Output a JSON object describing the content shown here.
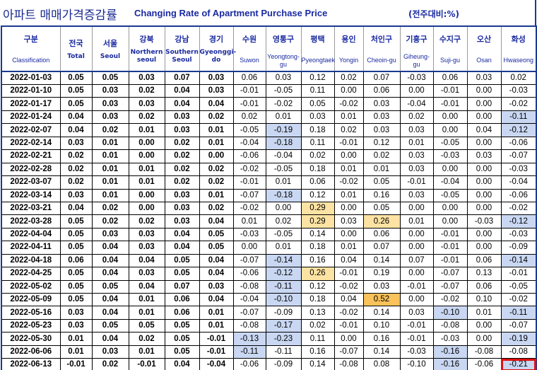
{
  "title": {
    "korean": "아파트 매매가격증감률",
    "english": "Changing Rate of Apartment Purchase Price",
    "note": "(전주대비:%)"
  },
  "columns": [
    {
      "ko": "구분",
      "en": "Classification"
    },
    {
      "ko": "전국",
      "en": "Total"
    },
    {
      "ko": "서울",
      "en": "Seoul"
    },
    {
      "ko": "강북",
      "en": "Northern seoul"
    },
    {
      "ko": "강남",
      "en": "Southern Seoul"
    },
    {
      "ko": "경기",
      "en": "Gyeonggi-do"
    },
    {
      "ko": "수원",
      "en": "Suwon"
    },
    {
      "ko": "영통구",
      "en": "Yeongtong-gu"
    },
    {
      "ko": "평택",
      "en": "Pyeongtaek"
    },
    {
      "ko": "용인",
      "en": "Yongin"
    },
    {
      "ko": "처인구",
      "en": "Cheoin-gu"
    },
    {
      "ko": "기흥구",
      "en": "Giheung-gu"
    },
    {
      "ko": "수지구",
      "en": "Suji-gu"
    },
    {
      "ko": "오산",
      "en": "Osan"
    },
    {
      "ko": "화성",
      "en": "Hwaseong"
    }
  ],
  "rows": [
    {
      "date": "2022-01-03",
      "values": [
        "0.05",
        "0.05",
        "0.03",
        "0.07",
        "0.03",
        "0.06",
        "0.03",
        "0.12",
        "0.02",
        "0.07",
        "-0.03",
        "0.06",
        "0.03",
        "0.02"
      ]
    },
    {
      "date": "2022-01-10",
      "values": [
        "0.05",
        "0.03",
        "0.02",
        "0.04",
        "0.03",
        "-0.01",
        "-0.05",
        "0.11",
        "0.00",
        "0.06",
        "0.00",
        "-0.01",
        "0.00",
        "-0.03"
      ]
    },
    {
      "date": "2022-01-17",
      "values": [
        "0.05",
        "0.03",
        "0.03",
        "0.04",
        "0.04",
        "-0.01",
        "-0.02",
        "0.05",
        "-0.02",
        "0.03",
        "-0.04",
        "-0.01",
        "0.00",
        "-0.02"
      ]
    },
    {
      "date": "2022-01-24",
      "values": [
        "0.04",
        "0.03",
        "0.02",
        "0.03",
        "0.02",
        "0.02",
        "0.01",
        "0.03",
        "0.01",
        "0.03",
        "0.02",
        "0.00",
        "0.00",
        "-0.11"
      ]
    },
    {
      "date": "2022-02-07",
      "values": [
        "0.04",
        "0.02",
        "0.01",
        "0.03",
        "0.01",
        "-0.05",
        "-0.19",
        "0.18",
        "0.02",
        "0.03",
        "0.03",
        "0.00",
        "0.04",
        "-0.12"
      ]
    },
    {
      "date": "2022-02-14",
      "values": [
        "0.03",
        "0.01",
        "0.00",
        "0.02",
        "0.01",
        "-0.04",
        "-0.18",
        "0.11",
        "-0.01",
        "0.12",
        "0.01",
        "-0.05",
        "0.00",
        "-0.06"
      ]
    },
    {
      "date": "2022-02-21",
      "values": [
        "0.02",
        "0.01",
        "0.00",
        "0.02",
        "0.00",
        "-0.06",
        "-0.04",
        "0.02",
        "0.00",
        "0.02",
        "0.03",
        "-0.03",
        "0.03",
        "-0.07"
      ]
    },
    {
      "date": "2022-02-28",
      "values": [
        "0.02",
        "0.01",
        "0.01",
        "0.02",
        "0.02",
        "-0.02",
        "-0.05",
        "0.18",
        "0.01",
        "0.01",
        "0.03",
        "0.00",
        "0.00",
        "-0.03"
      ]
    },
    {
      "date": "2022-03-07",
      "values": [
        "0.02",
        "0.01",
        "0.01",
        "0.02",
        "0.02",
        "-0.01",
        "0.01",
        "0.06",
        "-0.02",
        "0.05",
        "-0.01",
        "-0.04",
        "0.00",
        "-0.04"
      ]
    },
    {
      "date": "2022-03-14",
      "values": [
        "0.03",
        "0.01",
        "0.00",
        "0.03",
        "0.01",
        "-0.07",
        "-0.18",
        "0.12",
        "0.01",
        "0.16",
        "0.03",
        "-0.05",
        "0.00",
        "-0.06"
      ]
    },
    {
      "date": "2022-03-21",
      "values": [
        "0.04",
        "0.02",
        "0.00",
        "0.03",
        "0.02",
        "-0.02",
        "0.00",
        "0.29",
        "0.00",
        "0.05",
        "0.00",
        "0.00",
        "0.00",
        "-0.02"
      ]
    },
    {
      "date": "2022-03-28",
      "values": [
        "0.05",
        "0.02",
        "0.02",
        "0.03",
        "0.04",
        "0.01",
        "0.02",
        "0.29",
        "0.03",
        "0.26",
        "0.01",
        "0.00",
        "-0.03",
        "-0.12"
      ]
    },
    {
      "date": "2022-04-04",
      "values": [
        "0.05",
        "0.03",
        "0.03",
        "0.04",
        "0.05",
        "-0.03",
        "-0.05",
        "0.14",
        "0.00",
        "0.06",
        "0.00",
        "-0.01",
        "0.00",
        "-0.03"
      ]
    },
    {
      "date": "2022-04-11",
      "values": [
        "0.05",
        "0.04",
        "0.03",
        "0.04",
        "0.05",
        "0.00",
        "0.01",
        "0.18",
        "0.01",
        "0.07",
        "0.00",
        "-0.01",
        "0.00",
        "-0.09"
      ]
    },
    {
      "date": "2022-04-18",
      "values": [
        "0.06",
        "0.04",
        "0.04",
        "0.05",
        "0.04",
        "-0.07",
        "-0.14",
        "0.16",
        "0.04",
        "0.14",
        "0.07",
        "-0.01",
        "0.06",
        "-0.14"
      ]
    },
    {
      "date": "2022-04-25",
      "values": [
        "0.05",
        "0.04",
        "0.03",
        "0.05",
        "0.04",
        "-0.06",
        "-0.12",
        "0.26",
        "-0.01",
        "0.19",
        "0.00",
        "-0.07",
        "0.13",
        "-0.01"
      ]
    },
    {
      "date": "2022-05-02",
      "values": [
        "0.05",
        "0.05",
        "0.04",
        "0.07",
        "0.03",
        "-0.08",
        "-0.11",
        "0.12",
        "-0.02",
        "0.03",
        "-0.01",
        "-0.07",
        "0.06",
        "-0.05"
      ]
    },
    {
      "date": "2022-05-09",
      "values": [
        "0.05",
        "0.04",
        "0.01",
        "0.06",
        "0.04",
        "-0.04",
        "-0.10",
        "0.18",
        "0.04",
        "0.52",
        "0.00",
        "-0.02",
        "0.10",
        "-0.02"
      ]
    },
    {
      "date": "2022-05-16",
      "values": [
        "0.03",
        "0.04",
        "0.01",
        "0.06",
        "0.01",
        "-0.07",
        "-0.09",
        "0.13",
        "-0.02",
        "0.14",
        "0.03",
        "-0.10",
        "0.01",
        "-0.11"
      ]
    },
    {
      "date": "2022-05-23",
      "values": [
        "0.03",
        "0.05",
        "0.05",
        "0.05",
        "0.01",
        "-0.08",
        "-0.17",
        "0.02",
        "-0.01",
        "0.10",
        "-0.01",
        "-0.08",
        "0.00",
        "-0.07"
      ]
    },
    {
      "date": "2022-05-30",
      "values": [
        "0.01",
        "0.04",
        "0.02",
        "0.05",
        "-0.01",
        "-0.13",
        "-0.23",
        "0.11",
        "0.00",
        "0.16",
        "-0.01",
        "-0.03",
        "0.00",
        "-0.19"
      ]
    },
    {
      "date": "2022-06-06",
      "values": [
        "0.01",
        "0.03",
        "0.01",
        "0.05",
        "-0.01",
        "-0.11",
        "-0.11",
        "0.16",
        "-0.07",
        "0.14",
        "-0.03",
        "-0.16",
        "-0.08",
        "-0.08"
      ]
    },
    {
      "date": "2022-06-13",
      "values": [
        "-0.01",
        "0.02",
        "-0.01",
        "0.04",
        "-0.04",
        "-0.06",
        "-0.09",
        "0.14",
        "-0.08",
        "0.08",
        "-0.10",
        "-0.16",
        "-0.06",
        "-0.21"
      ]
    }
  ],
  "highlights": {
    "blue": "#c9d7f2",
    "yellow": "#fde3a3",
    "orange": "#f9c25a",
    "box": "#e01010",
    "cells": [
      {
        "row": "2022-01-24",
        "col": 13,
        "color": "blue"
      },
      {
        "row": "2022-02-07",
        "col": 6,
        "color": "blue"
      },
      {
        "row": "2022-02-07",
        "col": 13,
        "color": "blue"
      },
      {
        "row": "2022-02-14",
        "col": 6,
        "color": "blue"
      },
      {
        "row": "2022-03-14",
        "col": 6,
        "color": "blue"
      },
      {
        "row": "2022-03-21",
        "col": 7,
        "color": "yellow"
      },
      {
        "row": "2022-03-28",
        "col": 7,
        "color": "yellow"
      },
      {
        "row": "2022-03-28",
        "col": 9,
        "color": "yellow"
      },
      {
        "row": "2022-03-28",
        "col": 13,
        "color": "blue"
      },
      {
        "row": "2022-04-18",
        "col": 6,
        "color": "blue"
      },
      {
        "row": "2022-04-18",
        "col": 13,
        "color": "blue"
      },
      {
        "row": "2022-04-25",
        "col": 6,
        "color": "blue"
      },
      {
        "row": "2022-04-25",
        "col": 7,
        "color": "yellow"
      },
      {
        "row": "2022-05-02",
        "col": 6,
        "color": "blue"
      },
      {
        "row": "2022-05-09",
        "col": 6,
        "color": "blue"
      },
      {
        "row": "2022-05-09",
        "col": 9,
        "color": "orange"
      },
      {
        "row": "2022-05-16",
        "col": 11,
        "color": "blue"
      },
      {
        "row": "2022-05-16",
        "col": 13,
        "color": "blue"
      },
      {
        "row": "2022-05-23",
        "col": 6,
        "color": "blue"
      },
      {
        "row": "2022-05-30",
        "col": 5,
        "color": "blue"
      },
      {
        "row": "2022-05-30",
        "col": 6,
        "color": "blue"
      },
      {
        "row": "2022-05-30",
        "col": 13,
        "color": "blue"
      },
      {
        "row": "2022-06-06",
        "col": 5,
        "color": "blue"
      },
      {
        "row": "2022-06-06",
        "col": 11,
        "color": "blue"
      },
      {
        "row": "2022-06-13",
        "col": 11,
        "color": "blue"
      },
      {
        "row": "2022-06-13",
        "col": 13,
        "color": "boxed"
      }
    ]
  },
  "bold_columns": [
    0,
    1,
    2,
    3,
    4
  ]
}
